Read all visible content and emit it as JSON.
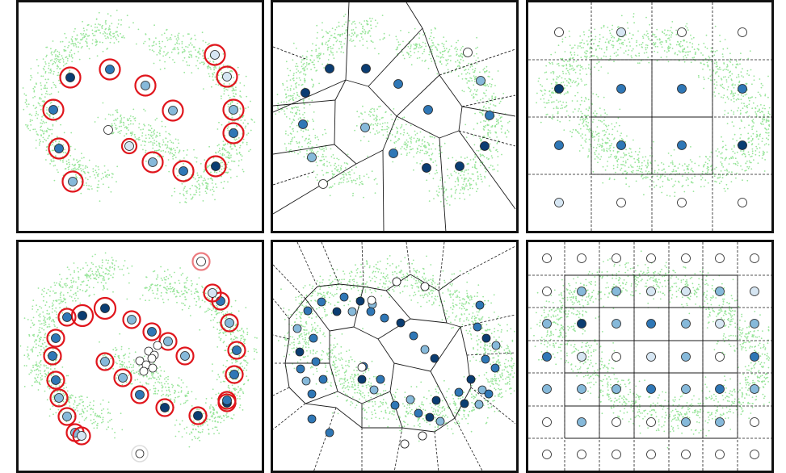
{
  "colors": {
    "scatter": "#98e59a",
    "ring": "#e0151c",
    "ring_light": "#ec7c80",
    "edge": "#1a1a1a",
    "node_dark": "#0b3d72",
    "node_mid": "#2f77b6",
    "node_light": "#86b9da",
    "node_pale": "#d6e6f3",
    "node_white": "#ffffff"
  },
  "panels": [
    {
      "id": "p1",
      "kind": "ring-nodes"
    },
    {
      "id": "p2",
      "kind": "voronoi"
    },
    {
      "id": "p3",
      "kind": "grid-coarse"
    },
    {
      "id": "p4",
      "kind": "ring-nodes-dense"
    },
    {
      "id": "p5",
      "kind": "voronoi-dense"
    },
    {
      "id": "p6",
      "kind": "grid-fine"
    }
  ]
}
